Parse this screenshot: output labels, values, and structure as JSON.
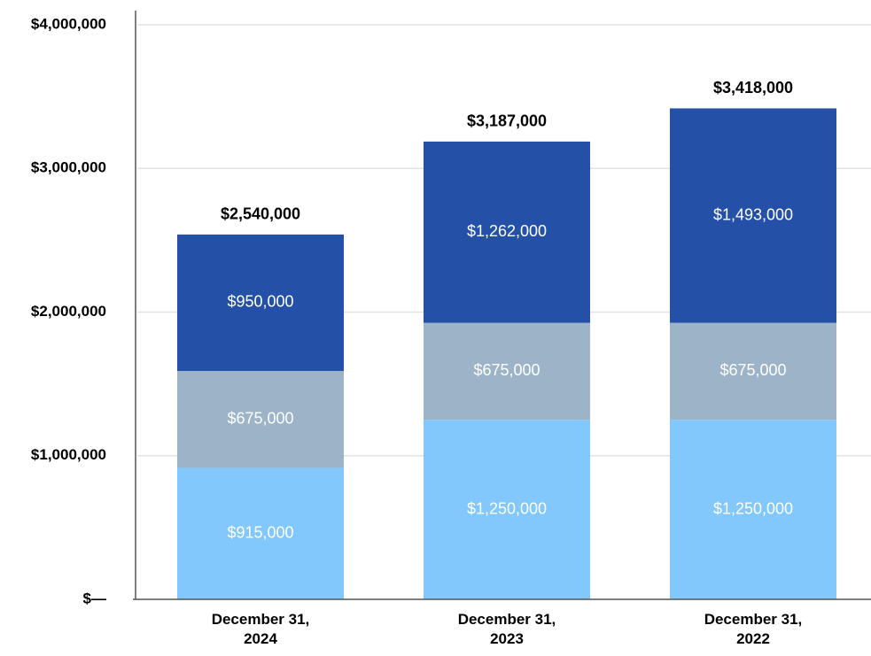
{
  "chart_data": {
    "type": "stacked_bar",
    "categories": [
      "December 31, 2024",
      "December 31, 2023",
      "December 31, 2022"
    ],
    "series": [
      {
        "color": "#82c8fc",
        "values": [
          915000,
          1250000,
          1250000
        ],
        "value_labels": [
          "$915,000",
          "$1,250,000",
          "$1,250,000"
        ]
      },
      {
        "color": "#9db3c8",
        "values": [
          675000,
          675000,
          675000
        ],
        "value_labels": [
          "$675,000",
          "$675,000",
          "$675,000"
        ]
      },
      {
        "color": "#2550a8",
        "values": [
          950000,
          1262000,
          1493000
        ],
        "value_labels": [
          "$950,000",
          "$1,262,000",
          "$1,493,000"
        ]
      }
    ],
    "totals": [
      2540000,
      3187000,
      3418000
    ],
    "total_labels": [
      "$2,540,000",
      "$3,187,000",
      "$3,418,000"
    ],
    "ylim": [
      0,
      4000000
    ],
    "yticks": [
      {
        "value": 0,
        "label": "$—"
      },
      {
        "value": 1000000,
        "label": "$1,000,000"
      },
      {
        "value": 2000000,
        "label": "$2,000,000"
      },
      {
        "value": 3000000,
        "label": "$3,000,000"
      },
      {
        "value": 4000000,
        "label": "$4,000,000"
      }
    ],
    "grid": true
  }
}
